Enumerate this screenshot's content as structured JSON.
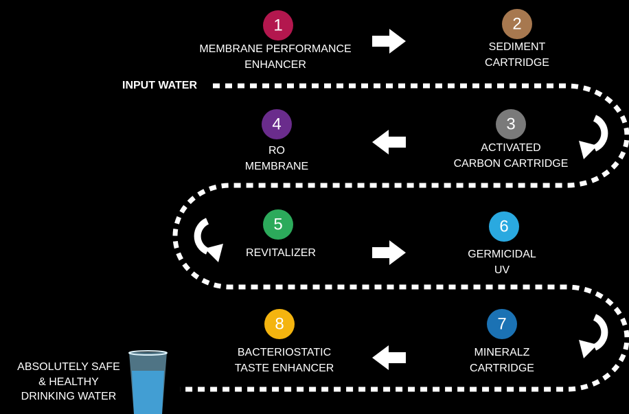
{
  "input_label": "INPUT WATER",
  "output_label": [
    "ABSOLUTELY SAFE",
    "& HEALTHY",
    "DRINKING WATER"
  ],
  "nodes": [
    {
      "number": 1,
      "label": [
        "MEMBRANE PERFORMANCE",
        "ENHANCER"
      ],
      "color": "#b3174e"
    },
    {
      "number": 2,
      "label": [
        "SEDIMENT",
        "CARTRIDGE"
      ],
      "color": "#a7784f"
    },
    {
      "number": 3,
      "label": [
        "ACTIVATED",
        "CARBON CARTRIDGE"
      ],
      "color": "#7a7a7a"
    },
    {
      "number": 4,
      "label": [
        "RO",
        "MEMBRANE"
      ],
      "color": "#6a2c8c"
    },
    {
      "number": 5,
      "label": [
        "REVITALIZER"
      ],
      "color": "#2caa5b"
    },
    {
      "number": 6,
      "label": [
        "GERMICIDAL",
        "UV"
      ],
      "color": "#2aa9e0"
    },
    {
      "number": 7,
      "label": [
        "MINERALZ",
        "CARTRIDGE"
      ],
      "color": "#1b72b4"
    },
    {
      "number": 8,
      "label": [
        "BACTERIOSTATIC",
        "TASTE ENHANCER"
      ],
      "color": "#f4b40f"
    }
  ]
}
